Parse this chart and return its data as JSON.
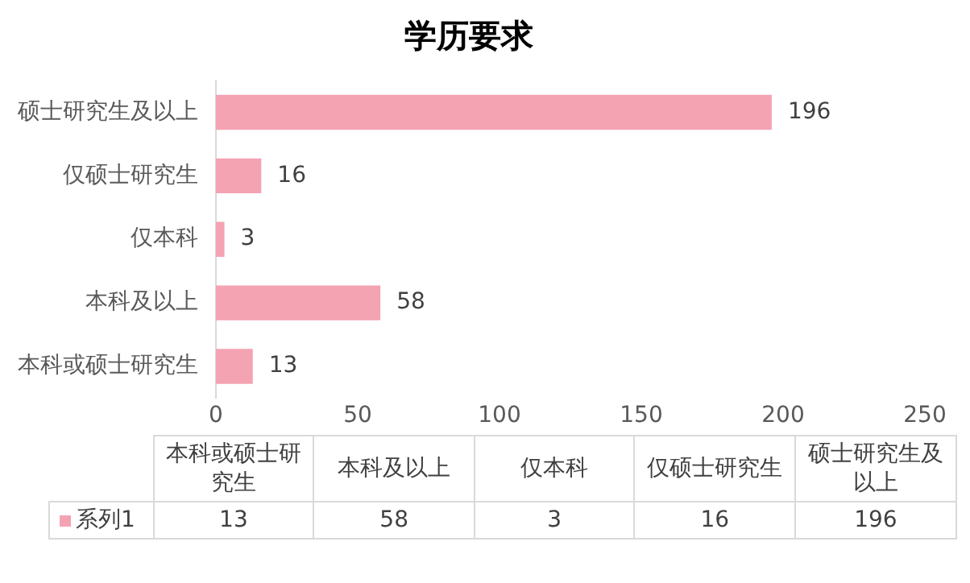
{
  "chart_data": [
    {
      "type": "bar",
      "orientation": "horizontal",
      "title": "学历要求",
      "categories": [
        "硕士研究生及以上",
        "仅硕士研究生",
        "仅本科",
        "本科及以上",
        "本科或硕士研究生"
      ],
      "series": [
        {
          "color": "#f4a3b3",
          "values": [
            196,
            16,
            3,
            58,
            13
          ]
        }
      ],
      "xlim": [
        0,
        250
      ],
      "xticks": [
        0,
        50,
        100,
        150,
        200,
        250
      ],
      "grid": false,
      "data_labels": true
    },
    {
      "type": "other",
      "categories": [
        "本科或硕士研究生",
        "本科及以上",
        "仅本科",
        "仅硕士研究生",
        "硕士研究生及以上"
      ],
      "series": [
        {
          "name": "系列1",
          "color": "#f4a3b3",
          "values": [
            13,
            58,
            3,
            16,
            196
          ]
        }
      ],
      "legend": "left",
      "data_labels": true
    }
  ]
}
